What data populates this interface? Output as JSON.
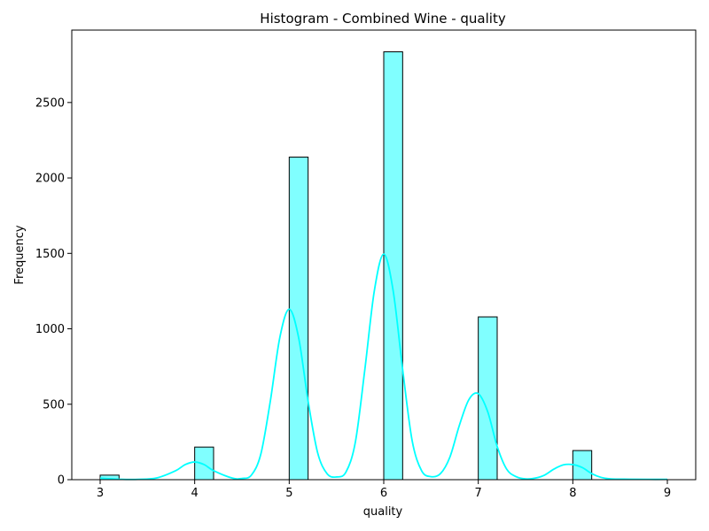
{
  "chart_data": {
    "type": "bar",
    "title": "Histogram - Combined Wine - quality",
    "xlabel": "quality",
    "ylabel": "Frequency",
    "xlim": [
      2.7,
      9.3
    ],
    "ylim": [
      0,
      2980
    ],
    "xticks": [
      3,
      4,
      5,
      6,
      7,
      8,
      9
    ],
    "yticks": [
      0,
      500,
      1000,
      1500,
      2000,
      2500
    ],
    "grid": false,
    "bin_width": 0.2,
    "bars": [
      {
        "x_start": 3.0,
        "value": 30
      },
      {
        "x_start": 4.0,
        "value": 216
      },
      {
        "x_start": 5.0,
        "value": 2138
      },
      {
        "x_start": 6.0,
        "value": 2836
      },
      {
        "x_start": 7.0,
        "value": 1079
      },
      {
        "x_start": 8.0,
        "value": 193
      }
    ],
    "kde_line": {
      "x": [
        3.0,
        3.2,
        3.4,
        3.6,
        3.8,
        3.9,
        4.0,
        4.1,
        4.2,
        4.4,
        4.5,
        4.6,
        4.7,
        4.8,
        4.9,
        5.0,
        5.1,
        5.2,
        5.3,
        5.4,
        5.5,
        5.6,
        5.7,
        5.8,
        5.9,
        6.0,
        6.1,
        6.2,
        6.3,
        6.4,
        6.5,
        6.6,
        6.7,
        6.8,
        6.9,
        7.0,
        7.1,
        7.2,
        7.3,
        7.4,
        7.5,
        7.6,
        7.7,
        7.8,
        7.9,
        8.0,
        8.1,
        8.2,
        8.3,
        8.4,
        8.6,
        8.8,
        9.0
      ],
      "y": [
        10,
        3,
        2,
        12,
        60,
        100,
        117,
        100,
        60,
        10,
        8,
        30,
        170,
        520,
        940,
        1130,
        940,
        520,
        180,
        40,
        18,
        50,
        250,
        730,
        1250,
        1495,
        1250,
        730,
        260,
        60,
        20,
        40,
        150,
        360,
        530,
        570,
        450,
        220,
        70,
        20,
        5,
        10,
        30,
        70,
        98,
        100,
        80,
        40,
        15,
        5,
        3,
        2,
        2
      ]
    },
    "colors": {
      "bar_fill": "#80ffff",
      "bar_edge": "#000000",
      "kde_line": "#00ffff"
    }
  }
}
